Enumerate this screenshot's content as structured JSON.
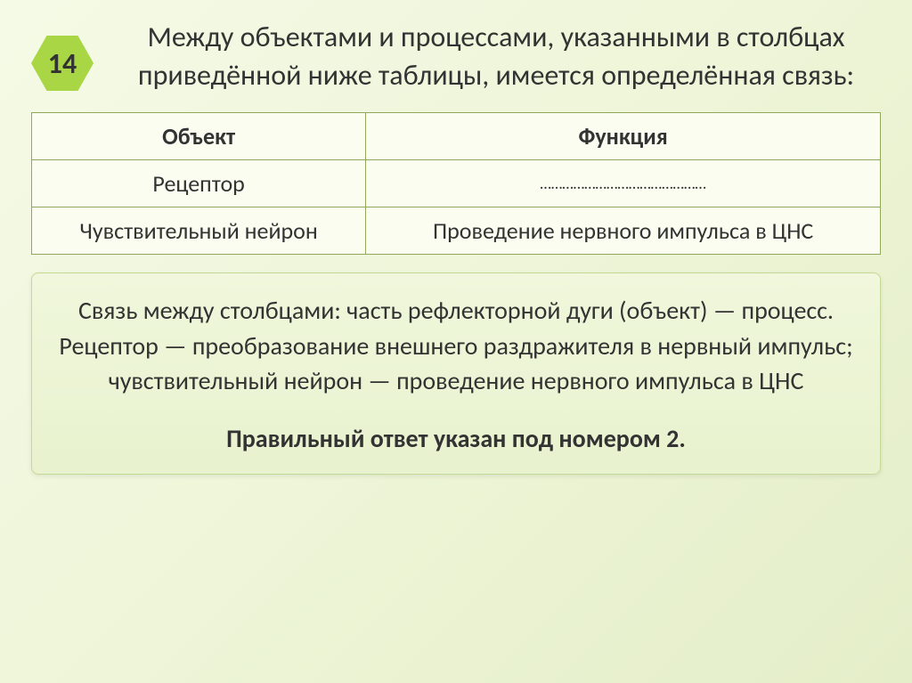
{
  "badge": {
    "number": "14"
  },
  "title": "Между объектами и процессами, указанными в столбцах приведённой ниже таблицы, имеется определённая связь:",
  "table": {
    "headers": {
      "col1": "Объект",
      "col2": "Функция"
    },
    "rows": [
      {
        "col1": "Рецептор",
        "col2": "………………………………………"
      },
      {
        "col1": "Чувствительный нейрон",
        "col2": "Проведение нервного импульса в ЦНС"
      }
    ]
  },
  "explanation": "Связь между столбцами: часть рефлекторной дуги (объект) — процесс. Рецептор — преобразование внешнего раздражителя в нервный импульс; чувствительный нейрон — проведение нервного импульса в ЦНС",
  "correct": "Правильный ответ указан под номером 2.",
  "colors": {
    "hexagon_bg": "#a8d644",
    "border": "#8fa85c",
    "box_bg_top": "#f0f7dc",
    "box_bg_bottom": "#e8f2ce"
  }
}
